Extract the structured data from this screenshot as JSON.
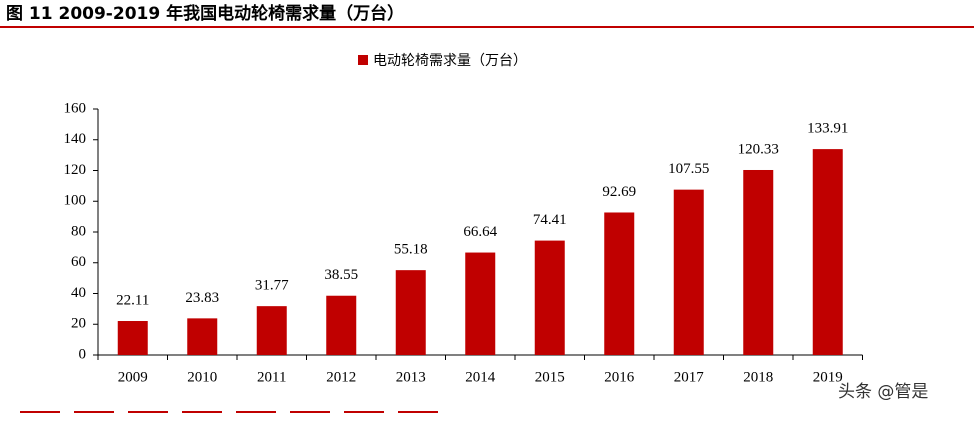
{
  "chart_data": {
    "type": "bar",
    "title": "图 11 2009-2019 年我国电动轮椅需求量（万台）",
    "categories": [
      "2009",
      "2010",
      "2011",
      "2012",
      "2013",
      "2014",
      "2015",
      "2016",
      "2017",
      "2018",
      "2019"
    ],
    "series": [
      {
        "name": "电动轮椅需求量（万台）",
        "color": "#c00000",
        "values": [
          22.11,
          23.83,
          31.77,
          38.55,
          55.18,
          66.64,
          74.41,
          92.69,
          107.55,
          120.33,
          133.91
        ]
      }
    ],
    "ylim": [
      0,
      160
    ],
    "yticks": [
      0,
      20,
      40,
      60,
      80,
      100,
      120,
      140,
      160
    ],
    "legend": "top",
    "grid": false,
    "watermark": "头条 @管是"
  }
}
